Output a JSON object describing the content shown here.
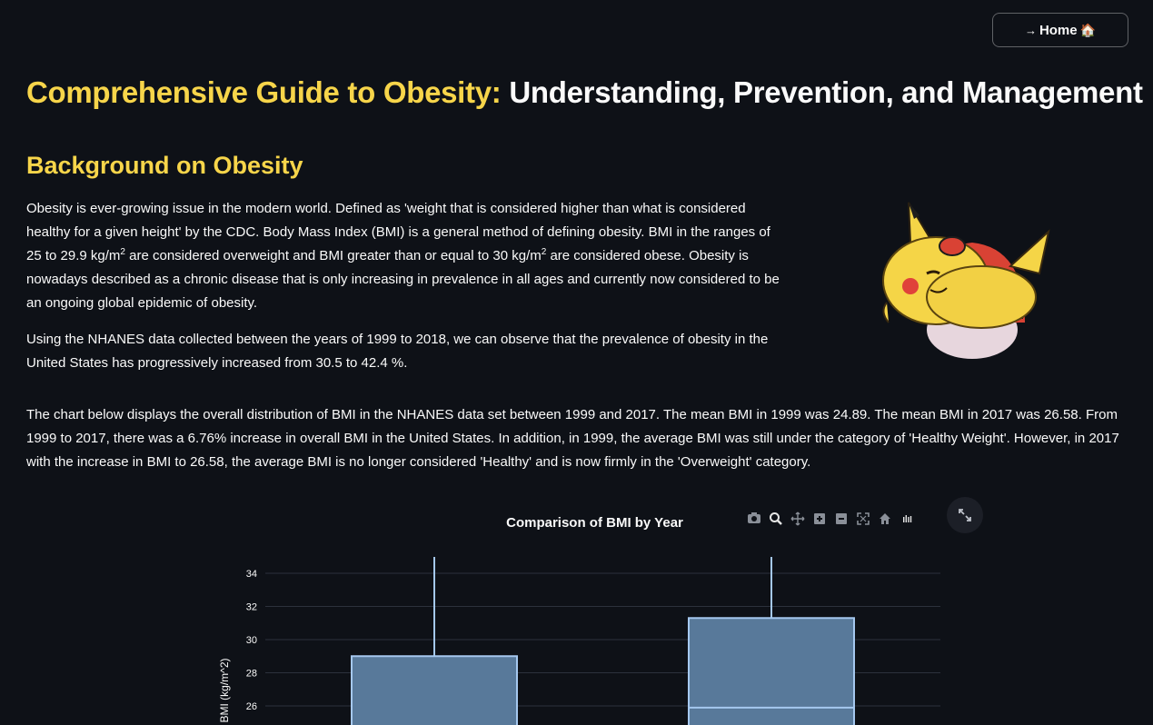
{
  "header": {
    "home_arrow": "→",
    "home_label": "Home",
    "home_emoji": "🏠"
  },
  "title": {
    "highlight": "Comprehensive Guide to Obesity:",
    "rest": " Understanding, Prevention, and Management"
  },
  "section": {
    "heading": "Background on Obesity"
  },
  "paragraphs": {
    "p1_a": "Obesity is ever-growing issue in the modern world. Defined as 'weight that is considered higher than what is considered healthy for a given height' by the CDC. Body Mass Index (BMI) is a general method of defining obesity. BMI in the ranges of 25 to 29.9 kg/m",
    "p1_sup1": "2",
    "p1_b": " are considered overweight and BMI greater than or equal to 30 kg/m",
    "p1_sup2": "2",
    "p1_c": " are considered obese. Obesity is nowadays described as a chronic disease that is only increasing in prevalence in all ages and currently now considered to be an ongoing global epidemic of obesity.",
    "p2": "Using the NHANES data collected between the years of 1999 to 2018, we can observe that the prevalence of obesity in the United States has progressively increased from 30.5 to 42.4 %.",
    "p3": "The chart below displays the overall distribution of BMI in the NHANES data set between 1999 and 2017. The mean BMI in 1999 was 24.89. The mean BMI in 2017 was 26.58. From 1999 to 2017, there was a 6.76% increase in overall BMI in the United States. In addition, in 1999, the average BMI was still under the category of 'Healthy Weight'. However, in 2017 with the increase in BMI to 26.58, the average BMI is no longer considered 'Healthy' and is now firmly in the 'Overweight' category."
  },
  "modebar": [
    "camera-icon",
    "zoom-icon",
    "pan-icon",
    "zoom-in-icon",
    "zoom-out-icon",
    "autoscale-icon",
    "reset-axes-icon",
    "plotly-logo-icon"
  ],
  "colors": {
    "accent": "#f7d54a",
    "background": "#0e1117",
    "box_fill": "#58799a",
    "box_line": "#a5c8ef"
  },
  "chart_data": {
    "type": "box",
    "title": "Comparison of BMI by Year",
    "ylabel": "BMI (kg/m^2)",
    "ylim": [
      23.5,
      35
    ],
    "yticks": [
      26,
      28,
      30,
      32,
      34
    ],
    "grid": true,
    "series": [
      {
        "q3": 29.0,
        "upper_whisker_beyond_view": true
      },
      {
        "q3": 31.3,
        "median": 25.9,
        "upper_whisker_beyond_view": true
      }
    ]
  }
}
